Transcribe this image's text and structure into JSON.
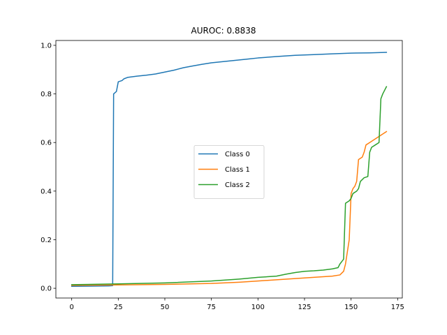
{
  "chart_data": {
    "type": "line",
    "title": "AUROC: 0.8838",
    "xlabel": "",
    "ylabel": "",
    "xlim": [
      -8.5,
      177.5
    ],
    "ylim": [
      -0.04,
      1.02
    ],
    "xticks": [
      0,
      25,
      50,
      75,
      100,
      125,
      150,
      175
    ],
    "yticks": [
      0.0,
      0.2,
      0.4,
      0.6,
      0.8,
      1.0
    ],
    "xtick_labels": [
      "0",
      "25",
      "50",
      "75",
      "100",
      "125",
      "150",
      "175"
    ],
    "ytick_labels": [
      "0.0",
      "0.2",
      "0.4",
      "0.6",
      "0.8",
      "1.0"
    ],
    "grid": false,
    "legend_position": "center",
    "series": [
      {
        "name": "Class 0",
        "color": "#1f77b4",
        "points": [
          [
            0,
            0.008
          ],
          [
            10,
            0.009
          ],
          [
            20,
            0.01
          ],
          [
            22,
            0.011
          ],
          [
            22.5,
            0.8
          ],
          [
            24,
            0.81
          ],
          [
            25,
            0.85
          ],
          [
            27,
            0.855
          ],
          [
            28,
            0.862
          ],
          [
            30,
            0.868
          ],
          [
            35,
            0.873
          ],
          [
            40,
            0.877
          ],
          [
            45,
            0.882
          ],
          [
            50,
            0.89
          ],
          [
            55,
            0.898
          ],
          [
            60,
            0.908
          ],
          [
            65,
            0.915
          ],
          [
            70,
            0.922
          ],
          [
            75,
            0.928
          ],
          [
            80,
            0.932
          ],
          [
            85,
            0.936
          ],
          [
            90,
            0.94
          ],
          [
            95,
            0.944
          ],
          [
            100,
            0.948
          ],
          [
            110,
            0.954
          ],
          [
            120,
            0.959
          ],
          [
            130,
            0.962
          ],
          [
            140,
            0.965
          ],
          [
            150,
            0.968
          ],
          [
            160,
            0.969
          ],
          [
            169,
            0.971
          ]
        ]
      },
      {
        "name": "Class 1",
        "color": "#ff7f0e",
        "points": [
          [
            0,
            0.012
          ],
          [
            25,
            0.014
          ],
          [
            50,
            0.016
          ],
          [
            75,
            0.02
          ],
          [
            90,
            0.025
          ],
          [
            100,
            0.03
          ],
          [
            110,
            0.035
          ],
          [
            120,
            0.04
          ],
          [
            130,
            0.045
          ],
          [
            140,
            0.05
          ],
          [
            144,
            0.055
          ],
          [
            146,
            0.07
          ],
          [
            147,
            0.1
          ],
          [
            148,
            0.15
          ],
          [
            149,
            0.2
          ],
          [
            150,
            0.39
          ],
          [
            151,
            0.41
          ],
          [
            152,
            0.42
          ],
          [
            153,
            0.44
          ],
          [
            154,
            0.53
          ],
          [
            155,
            0.535
          ],
          [
            156,
            0.54
          ],
          [
            157,
            0.56
          ],
          [
            158,
            0.59
          ],
          [
            160,
            0.6
          ],
          [
            162,
            0.61
          ],
          [
            164,
            0.62
          ],
          [
            166,
            0.63
          ],
          [
            169,
            0.645
          ]
        ]
      },
      {
        "name": "Class 2",
        "color": "#2ca02c",
        "points": [
          [
            0,
            0.015
          ],
          [
            25,
            0.018
          ],
          [
            50,
            0.022
          ],
          [
            75,
            0.03
          ],
          [
            90,
            0.038
          ],
          [
            100,
            0.045
          ],
          [
            110,
            0.05
          ],
          [
            115,
            0.058
          ],
          [
            120,
            0.065
          ],
          [
            125,
            0.07
          ],
          [
            130,
            0.072
          ],
          [
            135,
            0.075
          ],
          [
            140,
            0.08
          ],
          [
            143,
            0.085
          ],
          [
            144,
            0.1
          ],
          [
            145,
            0.11
          ],
          [
            146,
            0.12
          ],
          [
            147,
            0.35
          ],
          [
            148,
            0.355
          ],
          [
            149,
            0.36
          ],
          [
            150,
            0.37
          ],
          [
            151,
            0.39
          ],
          [
            153,
            0.4
          ],
          [
            154,
            0.41
          ],
          [
            155,
            0.44
          ],
          [
            157,
            0.455
          ],
          [
            159,
            0.46
          ],
          [
            160,
            0.56
          ],
          [
            161,
            0.58
          ],
          [
            163,
            0.59
          ],
          [
            165,
            0.6
          ],
          [
            166,
            0.78
          ],
          [
            167,
            0.8
          ],
          [
            169,
            0.83
          ]
        ]
      }
    ]
  }
}
